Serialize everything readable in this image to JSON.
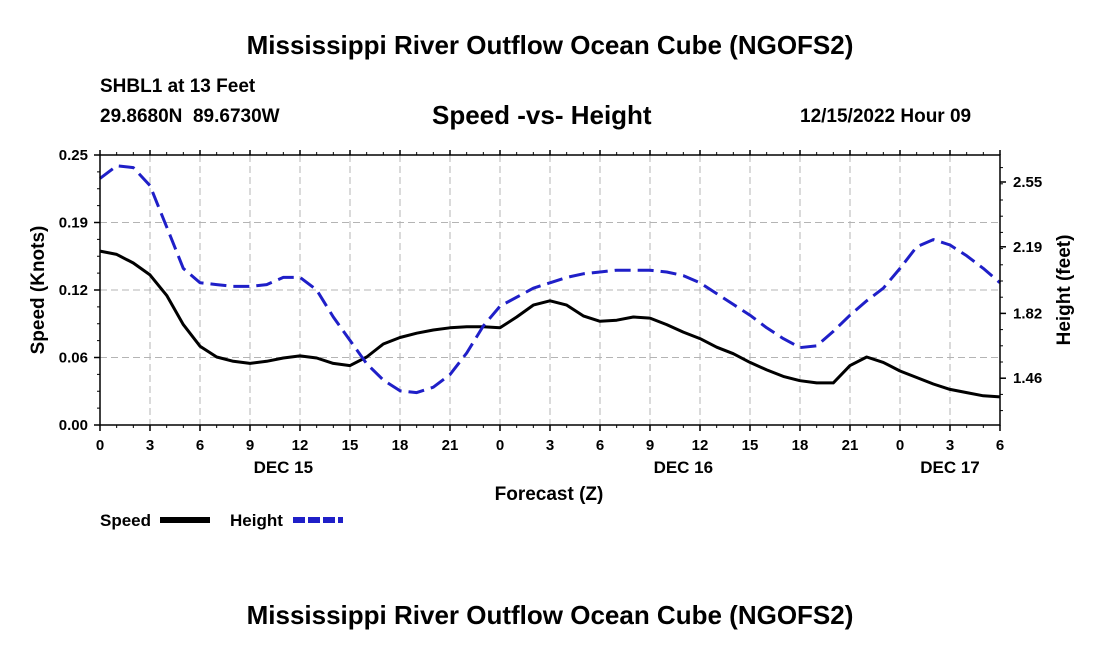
{
  "page": {
    "title_top": "Mississippi River Outflow Ocean Cube (NGOFS2)",
    "title_bottom": "Mississippi River Outflow Ocean Cube (NGOFS2)",
    "station": "SHBL1 at 13 Feet",
    "coords": "29.8680N  89.6730W",
    "subtitle": "Speed -vs- Height",
    "datetime": "12/15/2022 Hour 09"
  },
  "chart_data": {
    "type": "line",
    "title": "Speed -vs- Height",
    "xlabel": "Forecast (Z)",
    "ylabel": "Speed (Knots)",
    "y2label": "Height (feet)",
    "x_range": [
      0,
      54
    ],
    "x_tick_values": [
      0,
      3,
      6,
      9,
      12,
      15,
      18,
      21,
      24,
      27,
      30,
      33,
      36,
      39,
      42,
      45,
      48,
      51,
      54
    ],
    "x_tick_labels": [
      "0",
      "3",
      "6",
      "9",
      "12",
      "15",
      "18",
      "21",
      "0",
      "3",
      "6",
      "9",
      "12",
      "15",
      "18",
      "21",
      "0",
      "3",
      "6"
    ],
    "day_labels": [
      {
        "hour": 11,
        "label": "DEC 15"
      },
      {
        "hour": 35,
        "label": "DEC 16"
      },
      {
        "hour": 51,
        "label": "DEC 17"
      }
    ],
    "ylim": [
      0,
      0.25
    ],
    "y_ticks": [
      "0.00",
      "0.06",
      "0.12",
      "0.19",
      "0.25"
    ],
    "y2lim": [
      1.2,
      2.7
    ],
    "y2_ticks": [
      "1.46",
      "1.82",
      "2.19",
      "2.55"
    ],
    "grid": true,
    "legend": [
      {
        "name": "Speed",
        "color": "#000000",
        "style": "solid"
      },
      {
        "name": "Height",
        "color": "#1f1fc8",
        "style": "dashed"
      }
    ],
    "series": [
      {
        "name": "Speed",
        "axis": "left",
        "color": "#000000",
        "x": [
          0,
          1,
          2,
          3,
          4,
          5,
          6,
          7,
          8,
          9,
          10,
          11,
          12,
          13,
          14,
          15,
          16,
          17,
          18,
          19,
          20,
          21,
          22,
          23,
          24,
          25,
          26,
          27,
          28,
          29,
          30,
          31,
          32,
          33,
          34,
          35,
          36,
          37,
          38,
          39,
          40,
          41,
          42,
          43,
          44,
          45,
          46,
          47,
          48,
          49,
          50,
          51,
          52,
          53,
          54
        ],
        "values": [
          0.161,
          0.158,
          0.15,
          0.139,
          0.12,
          0.093,
          0.073,
          0.063,
          0.059,
          0.057,
          0.059,
          0.062,
          0.064,
          0.062,
          0.057,
          0.055,
          0.063,
          0.075,
          0.081,
          0.085,
          0.088,
          0.09,
          0.091,
          0.091,
          0.09,
          0.1,
          0.111,
          0.115,
          0.111,
          0.101,
          0.096,
          0.097,
          0.1,
          0.099,
          0.093,
          0.086,
          0.08,
          0.072,
          0.066,
          0.058,
          0.051,
          0.045,
          0.041,
          0.039,
          0.039,
          0.055,
          0.063,
          0.058,
          0.05,
          0.044,
          0.038,
          0.033,
          0.03,
          0.027,
          0.026
        ]
      },
      {
        "name": "Height",
        "axis": "right",
        "color": "#1f1fc8",
        "x": [
          0,
          1,
          2,
          3,
          4,
          5,
          6,
          7,
          8,
          9,
          10,
          11,
          12,
          13,
          14,
          15,
          16,
          17,
          18,
          19,
          20,
          21,
          22,
          23,
          24,
          25,
          26,
          27,
          28,
          29,
          30,
          31,
          32,
          33,
          34,
          35,
          36,
          37,
          38,
          39,
          40,
          41,
          42,
          43,
          44,
          45,
          46,
          47,
          48,
          49,
          50,
          51,
          52,
          53,
          54
        ],
        "values": [
          2.57,
          2.64,
          2.63,
          2.53,
          2.3,
          2.07,
          1.99,
          1.98,
          1.97,
          1.97,
          1.98,
          2.02,
          2.02,
          1.95,
          1.8,
          1.67,
          1.54,
          1.45,
          1.39,
          1.38,
          1.41,
          1.48,
          1.6,
          1.75,
          1.86,
          1.91,
          1.96,
          1.99,
          2.02,
          2.04,
          2.05,
          2.06,
          2.06,
          2.06,
          2.05,
          2.03,
          1.99,
          1.93,
          1.87,
          1.81,
          1.74,
          1.68,
          1.63,
          1.64,
          1.72,
          1.81,
          1.89,
          1.96,
          2.07,
          2.19,
          2.23,
          2.2,
          2.14,
          2.07,
          1.99
        ]
      }
    ]
  }
}
